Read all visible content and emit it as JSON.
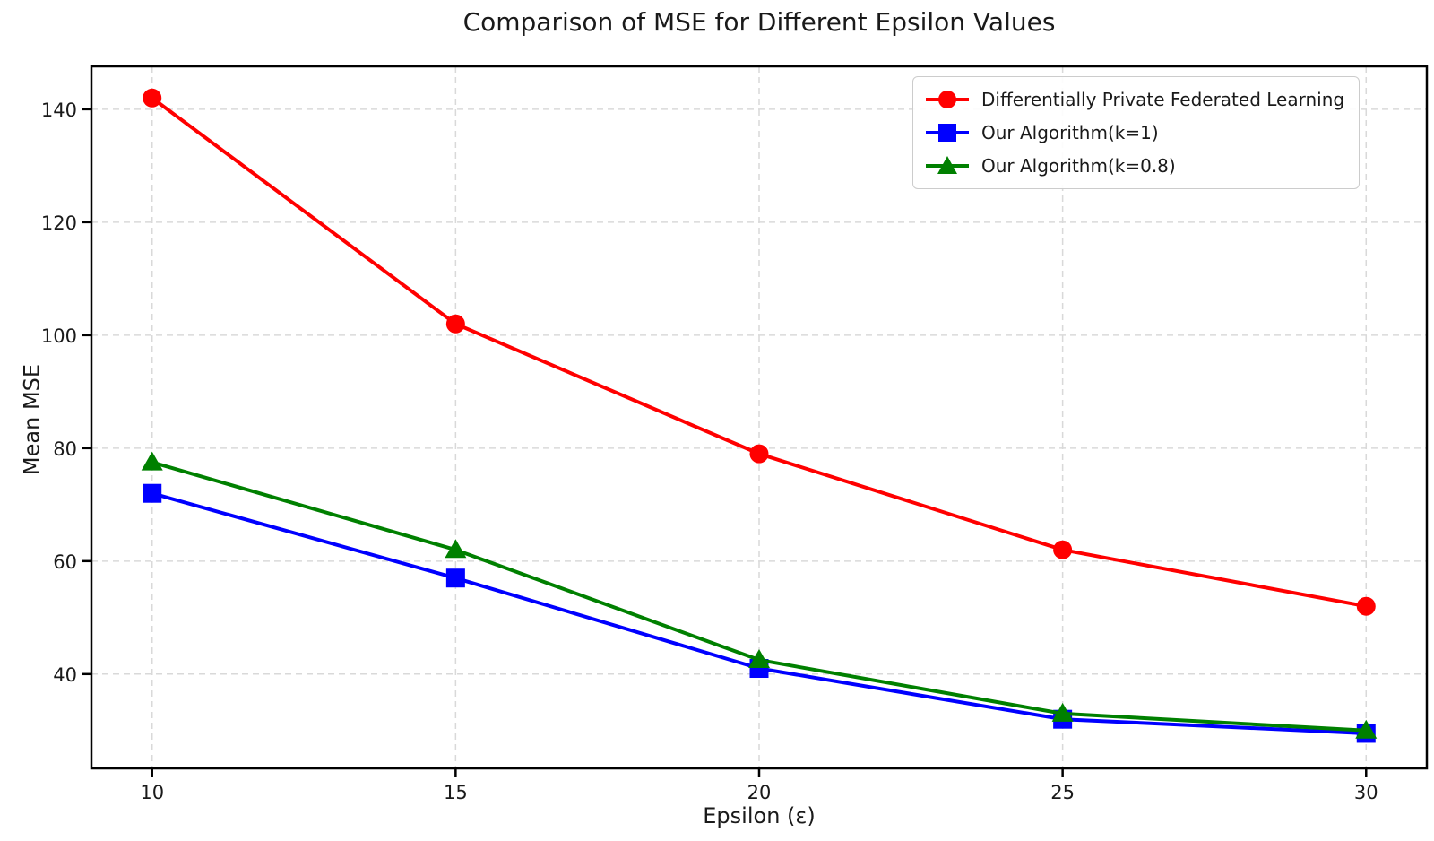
{
  "figure": {
    "background": "#ffffff",
    "text_color": "#1a1a1a",
    "grid_color": "#d9d9d9",
    "spine_color": "#000000"
  },
  "chart_data": {
    "type": "line",
    "title": "Comparison of MSE for Different Epsilon Values",
    "xlabel": "Epsilon (ε)",
    "ylabel": "Mean MSE",
    "x": [
      10,
      15,
      20,
      25,
      30
    ],
    "series": [
      {
        "name": "Differentially Private Federated Learning",
        "color": "#ff0000",
        "marker": "circle",
        "values": [
          142,
          102,
          79,
          62,
          52
        ]
      },
      {
        "name": "Our Algorithm(k=1)",
        "color": "#0000ff",
        "marker": "square",
        "values": [
          72,
          57,
          41,
          32,
          29.5
        ]
      },
      {
        "name": "Our Algorithm(k=0.8)",
        "color": "#008000",
        "marker": "triangle",
        "values": [
          77.5,
          62,
          42.5,
          33,
          30
        ]
      }
    ],
    "xticks": [
      10,
      15,
      20,
      25,
      30
    ],
    "yticks": [
      40,
      60,
      80,
      100,
      120,
      140
    ],
    "xlim": [
      9,
      31
    ],
    "ylim": [
      23.3,
      147.6
    ],
    "grid": true,
    "grid_style": "dashed",
    "legend_position": "upper-right"
  }
}
